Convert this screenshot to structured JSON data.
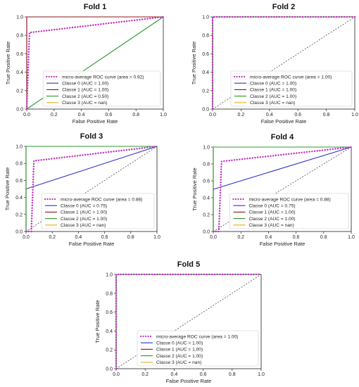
{
  "chart_data": [
    {
      "type": "line",
      "title": "Fold 1",
      "xlabel": "False Positive Rate",
      "ylabel": "True Positive Rate",
      "xlim": [
        0,
        1
      ],
      "ylim": [
        0,
        1
      ],
      "xticks": [
        "0.0",
        "0.2",
        "0.4",
        "0.6",
        "0.8",
        "1.0"
      ],
      "yticks": [
        "0.0",
        "0.2",
        "0.4",
        "0.6",
        "0.8",
        "1.0"
      ],
      "legend_position": "lower-right",
      "series": [
        {
          "name": "micro-average ROC curve (area = 0.92)",
          "color": "#c030c0",
          "style": "dotted",
          "x": [
            0,
            0.0,
            0.02,
            1.0
          ],
          "y": [
            0,
            0.0,
            0.83,
            1.0
          ]
        },
        {
          "name": "Classe 0 (AUC = 1.00)",
          "color": "#3333cc",
          "style": "solid",
          "x": [
            0,
            0,
            1
          ],
          "y": [
            0,
            1,
            1
          ]
        },
        {
          "name": "Classe 1 (AUC = 1.00)",
          "color": "#8b1a1a",
          "style": "solid",
          "x": [
            0,
            0,
            1
          ],
          "y": [
            0,
            1,
            1
          ]
        },
        {
          "name": "Classe 2 (AUC = 0.50)",
          "color": "#2e9a2e",
          "style": "solid",
          "x": [
            0,
            1
          ],
          "y": [
            0,
            1
          ]
        },
        {
          "name": "Classe 3 (AUC = nan)",
          "color": "#e0b020",
          "style": "solid",
          "x": [],
          "y": []
        }
      ],
      "diagonal": false
    },
    {
      "type": "line",
      "title": "Fold 2",
      "xlabel": "False Positive Rate",
      "ylabel": "True Positive Rate",
      "xlim": [
        0,
        1
      ],
      "ylim": [
        0,
        1
      ],
      "xticks": [
        "0.0",
        "0.2",
        "0.4",
        "0.6",
        "0.8",
        "1.0"
      ],
      "yticks": [
        "0.0",
        "0.2",
        "0.4",
        "0.6",
        "0.8",
        "1.0"
      ],
      "legend_position": "lower-right",
      "series": [
        {
          "name": "micro-average ROC curve (area = 1.00)",
          "color": "#c030c0",
          "style": "dotted",
          "x": [
            0,
            0,
            1
          ],
          "y": [
            0,
            1,
            1
          ]
        },
        {
          "name": "Classe 0 (AUC = 1.00)",
          "color": "#3333cc",
          "style": "solid",
          "x": [
            0,
            0,
            1
          ],
          "y": [
            0,
            1,
            1
          ]
        },
        {
          "name": "Classe 1 (AUC = 1.00)",
          "color": "#8b1a1a",
          "style": "solid",
          "x": [
            0,
            0,
            1
          ],
          "y": [
            0,
            1,
            1
          ]
        },
        {
          "name": "Classe 2 (AUC = 1.00)",
          "color": "#2e9a2e",
          "style": "solid",
          "x": [
            0,
            0,
            1
          ],
          "y": [
            0,
            1,
            1
          ]
        },
        {
          "name": "Classe 3 (AUC = nan)",
          "color": "#e0b020",
          "style": "solid",
          "x": [],
          "y": []
        }
      ],
      "diagonal": true
    },
    {
      "type": "line",
      "title": "Fold 3",
      "xlabel": "False Positive Rate",
      "ylabel": "True Positive Rate",
      "xlim": [
        0,
        1
      ],
      "ylim": [
        0,
        1
      ],
      "xticks": [
        "0.0",
        "0.2",
        "0.4",
        "0.6",
        "0.8",
        "1.0"
      ],
      "yticks": [
        "0.0",
        "0.2",
        "0.4",
        "0.6",
        "0.8",
        "1.0"
      ],
      "legend_position": "lower-right",
      "series": [
        {
          "name": "micro-average ROC curve (area = 0.88)",
          "color": "#c030c0",
          "style": "dotted",
          "x": [
            0,
            0.04,
            0.06,
            1.0
          ],
          "y": [
            0,
            0.0,
            0.83,
            1.0
          ]
        },
        {
          "name": "Classe 0 (AUC = 0.75)",
          "color": "#3333cc",
          "style": "solid",
          "x": [
            0,
            0,
            1
          ],
          "y": [
            0,
            0.5,
            1
          ]
        },
        {
          "name": "Classe 1 (AUC = 1.00)",
          "color": "#8b1a1a",
          "style": "solid",
          "x": [
            0,
            0,
            1
          ],
          "y": [
            0,
            1,
            1
          ]
        },
        {
          "name": "Classe 2 (AUC = 1.00)",
          "color": "#2e9a2e",
          "style": "solid",
          "x": [
            0,
            0,
            1
          ],
          "y": [
            0,
            1,
            1
          ]
        },
        {
          "name": "Classe 3 (AUC = nan)",
          "color": "#e0b020",
          "style": "solid",
          "x": [],
          "y": []
        }
      ],
      "diagonal": true
    },
    {
      "type": "line",
      "title": "Fold 4",
      "xlabel": "False Positive Rate",
      "ylabel": "True Positive Rate",
      "xlim": [
        0,
        1
      ],
      "ylim": [
        0,
        1
      ],
      "xticks": [
        "0.0",
        "0.2",
        "0.4",
        "0.6",
        "0.8",
        "1.0"
      ],
      "yticks": [
        "0.0",
        "0.2",
        "0.4",
        "0.6",
        "0.8",
        "1.0"
      ],
      "legend_position": "lower-right",
      "series": [
        {
          "name": "micro-average ROC curve (area = 0.88)",
          "color": "#c030c0",
          "style": "dotted",
          "x": [
            0,
            0.04,
            0.06,
            1.0
          ],
          "y": [
            0,
            0.0,
            0.83,
            1.0
          ]
        },
        {
          "name": "Classe 0 (AUC = 0.75)",
          "color": "#3333cc",
          "style": "solid",
          "x": [
            0,
            0,
            1
          ],
          "y": [
            0,
            0.5,
            1
          ]
        },
        {
          "name": "Classe 1 (AUC = 1.00)",
          "color": "#8b1a1a",
          "style": "solid",
          "x": [
            0,
            0,
            1
          ],
          "y": [
            0,
            1,
            1
          ]
        },
        {
          "name": "Classe 2 (AUC = 1.00)",
          "color": "#2e9a2e",
          "style": "solid",
          "x": [
            0,
            0,
            1
          ],
          "y": [
            0,
            1,
            1
          ]
        },
        {
          "name": "Classe 3 (AUC = nan)",
          "color": "#e0b020",
          "style": "solid",
          "x": [],
          "y": []
        }
      ],
      "diagonal": true
    },
    {
      "type": "line",
      "title": "Fold 5",
      "xlabel": "False Positive Rate",
      "ylabel": "True Positive Rate",
      "xlim": [
        0,
        1
      ],
      "ylim": [
        0,
        1
      ],
      "xticks": [
        "0.0",
        "0.2",
        "0.4",
        "0.6",
        "0.8",
        "1.0"
      ],
      "yticks": [
        "0.0",
        "0.2",
        "0.4",
        "0.6",
        "0.8",
        "1.0"
      ],
      "legend_position": "lower-right",
      "series": [
        {
          "name": "micro-average ROC curve (area = 1.00)",
          "color": "#c030c0",
          "style": "dotted",
          "x": [
            0,
            0,
            1
          ],
          "y": [
            0,
            1,
            1
          ]
        },
        {
          "name": "Classe 0 (AUC = 1.00)",
          "color": "#3333cc",
          "style": "solid",
          "x": [
            0,
            0,
            1
          ],
          "y": [
            0,
            1,
            1
          ]
        },
        {
          "name": "Classe 1 (AUC = 1.00)",
          "color": "#8b1a1a",
          "style": "solid",
          "x": [
            0,
            0,
            1
          ],
          "y": [
            0,
            1,
            1
          ]
        },
        {
          "name": "Classe 2 (AUC = 1.00)",
          "color": "#2e9a2e",
          "style": "solid",
          "x": [
            0,
            0,
            1
          ],
          "y": [
            0,
            1,
            1
          ]
        },
        {
          "name": "Classe 3 (AUC = nan)",
          "color": "#e0b020",
          "style": "solid",
          "x": [],
          "y": []
        }
      ],
      "diagonal": true
    }
  ]
}
